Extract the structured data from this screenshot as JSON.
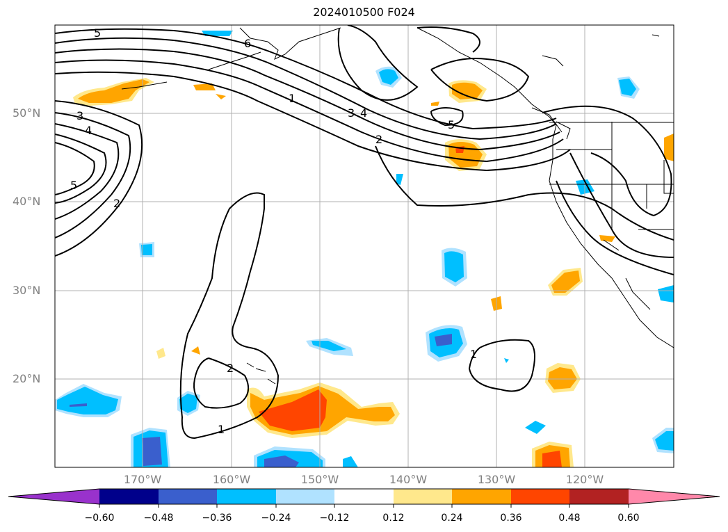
{
  "title": "2024010500 F024",
  "lat_labels": [
    "50°N",
    "40°N",
    "30°N",
    "20°N"
  ],
  "lon_labels": [
    "170°W",
    "160°W",
    "150°W",
    "140°W",
    "130°W",
    "120°W"
  ],
  "contour_labels": [
    "5",
    "6",
    "1",
    "3",
    "4",
    "2",
    "5",
    "3",
    "4",
    "5",
    "2",
    "2",
    "1",
    "1"
  ],
  "colorbar": {
    "ticks": [
      "−0.60",
      "−0.48",
      "−0.36",
      "−0.24",
      "−0.12",
      "0.12",
      "0.24",
      "0.36",
      "0.48",
      "0.60"
    ],
    "colors": [
      "#9932cc",
      "#00008b",
      "#3a5fcd",
      "#00bfff",
      "#b0e2ff",
      "#ffffff",
      "#ffe88c",
      "#ffa500",
      "#ff4500",
      "#b22222",
      "#ff88aa"
    ]
  }
}
